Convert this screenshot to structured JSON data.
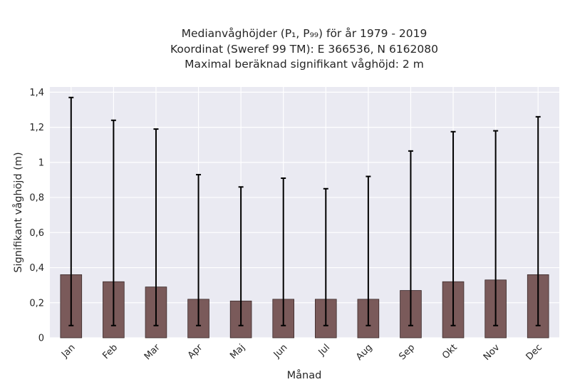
{
  "chart_data": {
    "type": "bar",
    "title_lines": [
      "Medianvåghöjder (P₁, P₉₉) för år 1979 - 2019",
      "Koordinat (Sweref 99 TM): E 366536, N 6162080",
      "Maximal beräknad signifikant våghöjd: 2 m"
    ],
    "xlabel": "Månad",
    "ylabel": "Signifikant våghöjd (m)",
    "categories": [
      "Jan",
      "Feb",
      "Mar",
      "Apr",
      "Maj",
      "Jun",
      "Jul",
      "Aug",
      "Sep",
      "Okt",
      "Nov",
      "Dec"
    ],
    "values": [
      0.36,
      0.32,
      0.29,
      0.22,
      0.21,
      0.22,
      0.22,
      0.22,
      0.27,
      0.32,
      0.33,
      0.36
    ],
    "error_low": [
      0.07,
      0.07,
      0.07,
      0.07,
      0.07,
      0.07,
      0.07,
      0.07,
      0.07,
      0.07,
      0.07,
      0.07
    ],
    "error_high": [
      1.37,
      1.24,
      1.19,
      0.93,
      0.86,
      0.91,
      0.85,
      0.92,
      1.065,
      1.175,
      1.18,
      1.26
    ],
    "ylim": [
      0,
      1.43
    ],
    "yticks": [
      0,
      0.2,
      0.4,
      0.6,
      0.8,
      1,
      1.2,
      1.4
    ],
    "ytick_labels": [
      "0",
      "0,2",
      "0,4",
      "0,6",
      "0,8",
      "1",
      "1,2",
      "1,4"
    ],
    "grid": true,
    "colors": {
      "bar": "#7a5a5a",
      "bar_edge": "#3a2a2a",
      "error": "#000000",
      "background": "#eaeaf2",
      "grid": "#ffffff"
    }
  }
}
